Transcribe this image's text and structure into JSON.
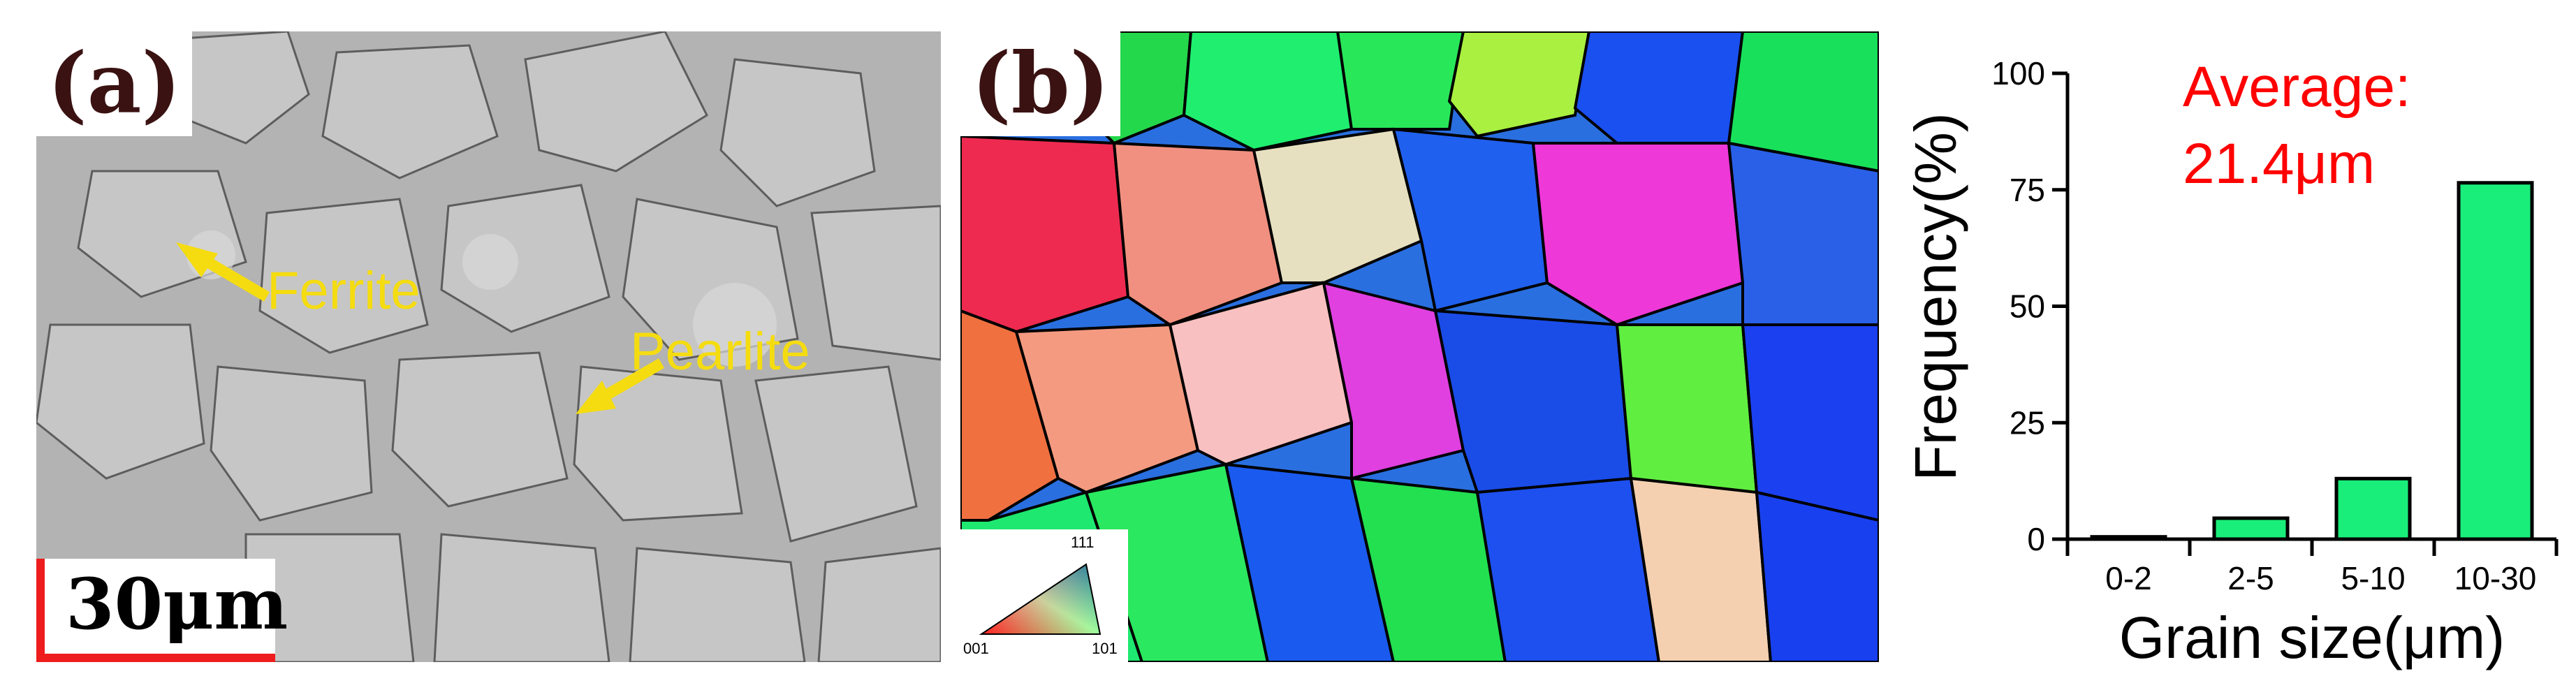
{
  "panel_a": {
    "label": "(a)",
    "annotations": {
      "ferrite": "Ferrite",
      "pearlite": "Pearlite"
    },
    "scale_bar": "30μm"
  },
  "panel_b": {
    "label": "(b)",
    "ipf_key": {
      "top": "111",
      "left": "001",
      "right": "101"
    }
  },
  "colors": {
    "scale_bar": "#ee1c1c",
    "annotation": "#f5dc10",
    "bar_fill": "#19ee7a",
    "average_text": "#ff0000"
  },
  "chart_data": {
    "type": "bar",
    "categories": [
      "0-2",
      "2-5",
      "5-10",
      "10-30"
    ],
    "values": [
      0.5,
      4.5,
      13,
      76.5
    ],
    "xlabel": "Grain size(μm)",
    "ylabel": "Frequency(%)",
    "ylim": [
      0,
      100
    ],
    "yticks": [
      0,
      25,
      50,
      75,
      100
    ],
    "annotation": {
      "line1": "Average:",
      "line2": "21.4μm"
    },
    "legend": "none",
    "grid": false
  }
}
